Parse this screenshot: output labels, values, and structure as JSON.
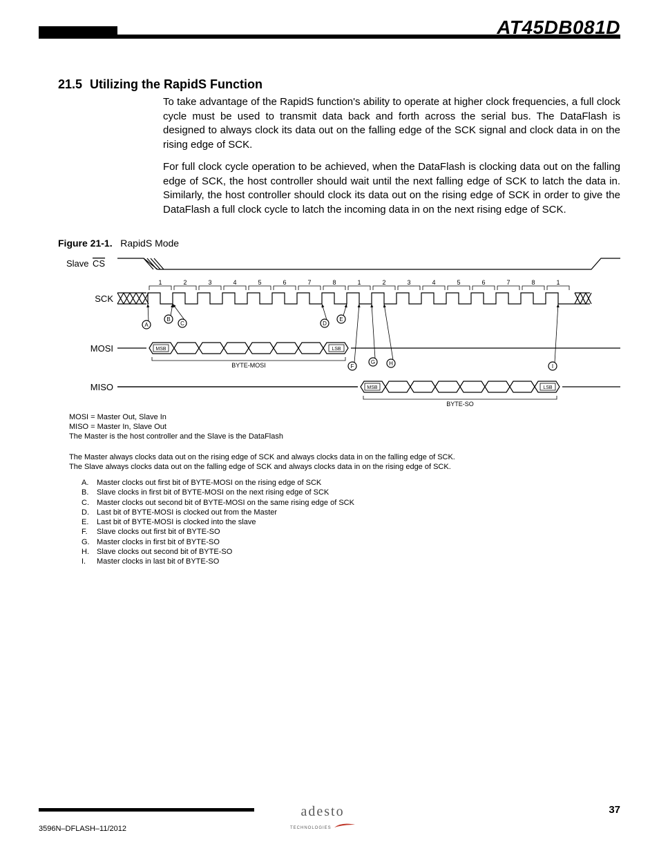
{
  "header": {
    "product": "AT45DB081D"
  },
  "section": {
    "number": "21.5",
    "title": "Utilizing the RapidS Function",
    "para1": "To take advantage of the RapidS function's ability to operate at higher clock frequencies, a full clock cycle must be used to transmit data back and forth across the serial bus. The DataFlash is designed to always clock its data out on the falling edge of the SCK signal and clock data in on the rising edge of SCK.",
    "para2": "For full clock cycle operation to be achieved, when the DataFlash is clocking data out on the falling edge of SCK, the host controller should wait until the next falling edge of SCK to latch the data in. Similarly, the host controller should clock its data out on the rising edge of SCK in order to give the DataFlash a full clock cycle to latch the incoming data in on the next rising edge of SCK."
  },
  "figure": {
    "label_bold": "Figure 21-1.",
    "label_rest": "RapidS Mode",
    "signals": {
      "cs_pre": "Slave ",
      "cs_bar": "CS",
      "sck": "SCK",
      "mosi": "MOSI",
      "miso": "MISO"
    },
    "byte_mosi": "BYTE-MOSI",
    "byte_so": "BYTE-SO",
    "msb": "MSB",
    "lsb": "LSB",
    "ticks": [
      "1",
      "2",
      "3",
      "4",
      "5",
      "6",
      "7",
      "8",
      "1",
      "2",
      "3",
      "4",
      "5",
      "6",
      "7",
      "8",
      "1"
    ],
    "markers": [
      "A",
      "B",
      "C",
      "D",
      "E",
      "F",
      "G",
      "H",
      "I"
    ],
    "colors": {
      "stroke": "#000000",
      "text": "#000000",
      "bg": "#ffffff"
    },
    "line_width": 1.2,
    "font_size_label": 13,
    "font_size_tick": 9,
    "font_size_small": 8
  },
  "notes": {
    "line1": "MOSI = Master Out, Slave In",
    "line2": "MISO = Master In, Slave Out",
    "line3": "The Master is the host controller and the Slave is the DataFlash",
    "line4": "The Master always clocks data out on the rising edge of SCK and always clocks data in on the falling edge of SCK.",
    "line5": "The Slave always clocks data out on the falling edge of SCK and always clocks data in on the rising edge of SCK.",
    "list": [
      {
        "k": "A.",
        "v": "Master clocks out first bit of BYTE-MOSI on the rising edge of SCK"
      },
      {
        "k": "B.",
        "v": "Slave clocks in first bit of BYTE-MOSI on the next rising edge of SCK"
      },
      {
        "k": "C.",
        "v": "Master clocks out second bit of BYTE-MOSI on the same rising edge of SCK"
      },
      {
        "k": "D.",
        "v": "Last bit of BYTE-MOSI is clocked out from the Master"
      },
      {
        "k": "E.",
        "v": "Last bit of BYTE-MOSI is clocked into the slave"
      },
      {
        "k": "F.",
        "v": "Slave clocks out first bit of BYTE-SO"
      },
      {
        "k": "G.",
        "v": "Master clocks in first bit of BYTE-SO"
      },
      {
        "k": "H.",
        "v": "Slave clocks out second bit of BYTE-SO"
      },
      {
        "k": "I.",
        "v": "Master clocks in last bit of BYTE-SO"
      }
    ]
  },
  "footer": {
    "doc": "3596N–DFLASH–11/2012",
    "page": "37",
    "brand": "adesto",
    "sub": "TECHNOLOGIES"
  }
}
